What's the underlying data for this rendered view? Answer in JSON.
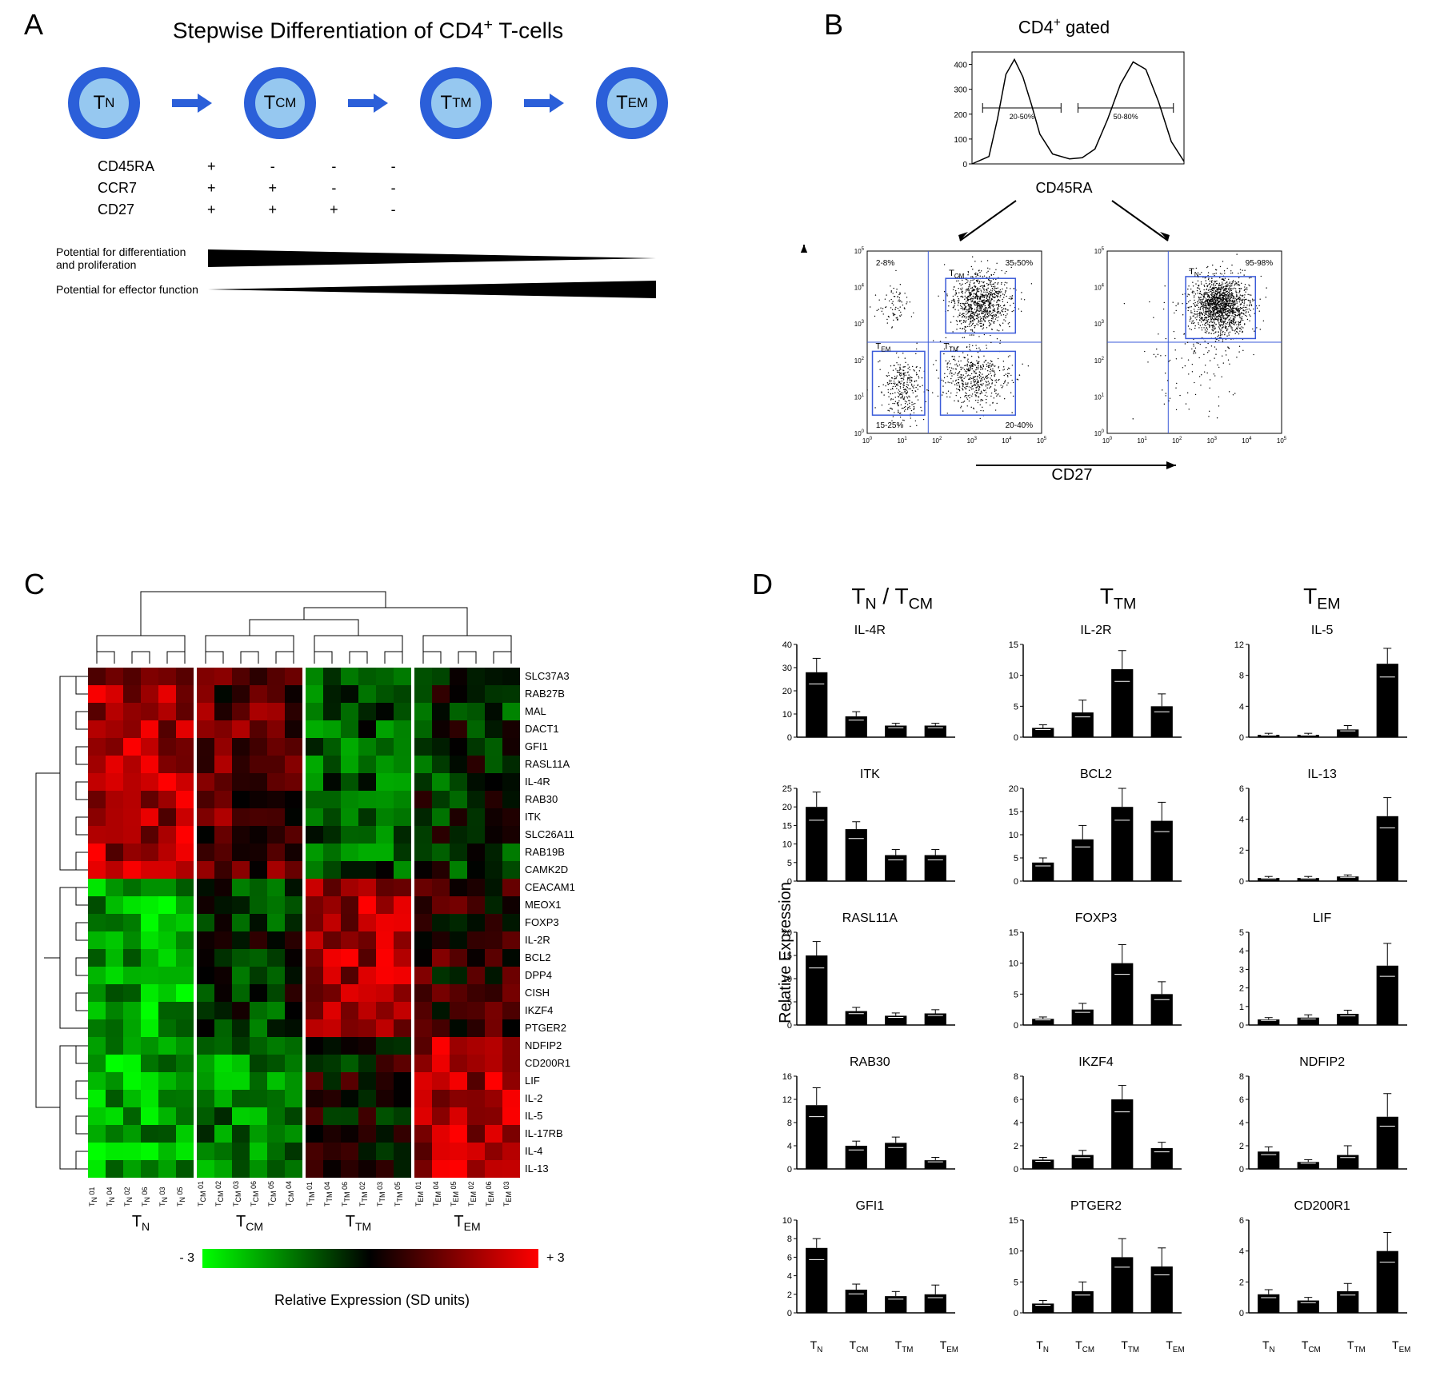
{
  "panel_labels": {
    "a": "A",
    "b": "B",
    "c": "C",
    "d": "D"
  },
  "panelA": {
    "title_prefix": "Stepwise Differentiation of CD4",
    "title_sup": "+",
    "title_suffix": " T-cells",
    "cells": [
      "T_N",
      "T_CM",
      "T_TM",
      "T_EM"
    ],
    "markers": [
      {
        "name": "CD45RA",
        "vals": [
          "+",
          "-",
          "-",
          "-"
        ]
      },
      {
        "name": "CCR7",
        "vals": [
          "+",
          "+",
          "-",
          "-"
        ]
      },
      {
        "name": "CD27",
        "vals": [
          "+",
          "+",
          "+",
          "-"
        ]
      }
    ],
    "wedge1": "Potential for differentiation\nand proliferation",
    "wedge2": "Potential for effector function",
    "colors": {
      "cell_fill": "#96c8f0",
      "cell_border": "#2b5fd9",
      "arrow": "#2b5fd9",
      "wedge": "#000000"
    }
  },
  "panelB": {
    "title_prefix": "CD4",
    "title_sup": "+",
    "title_suffix": " gated",
    "histogram": {
      "x_label": "CD45RA",
      "gates": [
        "20-50%",
        "50-80%"
      ],
      "y_ticks": [
        0,
        100,
        200,
        300,
        400
      ],
      "curve": [
        [
          0,
          0
        ],
        [
          8,
          30
        ],
        [
          12,
          180
        ],
        [
          16,
          360
        ],
        [
          20,
          420
        ],
        [
          24,
          350
        ],
        [
          28,
          240
        ],
        [
          32,
          120
        ],
        [
          38,
          40
        ],
        [
          46,
          20
        ],
        [
          52,
          25
        ],
        [
          58,
          60
        ],
        [
          64,
          180
        ],
        [
          70,
          320
        ],
        [
          76,
          410
        ],
        [
          82,
          380
        ],
        [
          88,
          250
        ],
        [
          94,
          90
        ],
        [
          100,
          10
        ]
      ]
    },
    "scatter_left": {
      "quads": {
        "tl": "2-8%",
        "tr": "35-50%",
        "bl": "15-25%",
        "br": "20-40%"
      },
      "boxes": {
        "TCM": "T_CM",
        "TTM": "T_TM",
        "TEM": "T_EM"
      }
    },
    "scatter_right": {
      "tr": "95-98%",
      "box": "T_N"
    },
    "y_axis": "CCR7",
    "x_axis": "CD27"
  },
  "panelC": {
    "genes": [
      "SLC37A3",
      "RAB27B",
      "MAL",
      "DACT1",
      "GFI1",
      "RASL11A",
      "IL-4R",
      "RAB30",
      "ITK",
      "SLC26A11",
      "RAB19B",
      "CAMK2D",
      "CEACAM1",
      "MEOX1",
      "FOXP3",
      "IL-2R",
      "BCL2",
      "DPP4",
      "CISH",
      "IKZF4",
      "PTGER2",
      "NDFIP2",
      "CD200R1",
      "LIF",
      "IL-2",
      "IL-5",
      "IL-17RB",
      "IL-4",
      "IL-13"
    ],
    "col_groups": [
      {
        "name": "T_N",
        "samples": [
          "T_N 01",
          "T_N 04",
          "T_N 02",
          "T_N 06",
          "T_N 03",
          "T_N 05"
        ]
      },
      {
        "name": "T_CM",
        "samples": [
          "T_CM 01",
          "T_CM 02",
          "T_CM 03",
          "T_CM 06",
          "T_CM 05",
          "T_CM 04"
        ]
      },
      {
        "name": "T_TM",
        "samples": [
          "T_TM 01",
          "T_TM 04",
          "T_TM 06",
          "T_TM 02",
          "T_TM 03",
          "T_TM 05"
        ]
      },
      {
        "name": "T_EM",
        "samples": [
          "T_EM 01",
          "T_EM 04",
          "T_EM 05",
          "T_EM 02",
          "T_EM 06",
          "T_EM 03"
        ]
      }
    ],
    "row_clusters": [
      12,
      9,
      8
    ],
    "colorbar": {
      "min": "- 3",
      "max": "+ 3",
      "title": "Relative Expression (SD units)"
    },
    "colors": {
      "low": "#00ff00",
      "mid": "#000000",
      "high": "#ff0000"
    }
  },
  "panelD": {
    "headers": [
      "T_N / T_CM",
      "T_TM",
      "T_EM"
    ],
    "ylabel": "Relative Expression",
    "x_cats": [
      "T_N",
      "T_CM",
      "T_TM",
      "T_EM"
    ],
    "charts": [
      {
        "title": "IL-4R",
        "ymax": 40,
        "ticks": [
          0,
          10,
          20,
          30,
          40
        ],
        "vals": [
          28,
          9,
          5,
          5
        ],
        "err": [
          6,
          2,
          1,
          1
        ]
      },
      {
        "title": "IL-2R",
        "ymax": 15,
        "ticks": [
          0,
          5,
          10,
          15
        ],
        "vals": [
          1.5,
          4,
          11,
          5
        ],
        "err": [
          0.5,
          2,
          3,
          2
        ]
      },
      {
        "title": "IL-5",
        "ymax": 12,
        "ticks": [
          0,
          4,
          8,
          12
        ],
        "vals": [
          0.3,
          0.3,
          1,
          9.5
        ],
        "err": [
          0.2,
          0.2,
          0.5,
          2
        ]
      },
      {
        "title": "ITK",
        "ymax": 25,
        "ticks": [
          0,
          5,
          10,
          15,
          20,
          25
        ],
        "vals": [
          20,
          14,
          7,
          7
        ],
        "err": [
          4,
          2,
          1.5,
          1.5
        ]
      },
      {
        "title": "BCL2",
        "ymax": 20,
        "ticks": [
          0,
          5,
          10,
          15,
          20
        ],
        "vals": [
          4,
          9,
          16,
          13
        ],
        "err": [
          1,
          3,
          4,
          4
        ]
      },
      {
        "title": "IL-13",
        "ymax": 6.0,
        "ticks": [
          0,
          2.0,
          4.0,
          6.0
        ],
        "vals": [
          0.2,
          0.2,
          0.3,
          4.2
        ],
        "err": [
          0.1,
          0.1,
          0.1,
          1.2
        ]
      },
      {
        "title": "RASL11A",
        "ymax": 20,
        "ticks": [
          0,
          5,
          10,
          15,
          20
        ],
        "vals": [
          15,
          3,
          2,
          2.5
        ],
        "err": [
          3,
          0.8,
          0.6,
          0.8
        ]
      },
      {
        "title": "FOXP3",
        "ymax": 15,
        "ticks": [
          0,
          5,
          10,
          15
        ],
        "vals": [
          1,
          2.5,
          10,
          5
        ],
        "err": [
          0.3,
          1,
          3,
          2
        ]
      },
      {
        "title": "LIF",
        "ymax": 5.0,
        "ticks": [
          0,
          1.0,
          2.0,
          3.0,
          4.0,
          5.0
        ],
        "vals": [
          0.3,
          0.4,
          0.6,
          3.2
        ],
        "err": [
          0.1,
          0.15,
          0.2,
          1.2
        ]
      },
      {
        "title": "RAB30",
        "ymax": 16,
        "ticks": [
          0,
          4,
          8,
          12,
          16
        ],
        "vals": [
          11,
          4,
          4.5,
          1.5
        ],
        "err": [
          3,
          0.8,
          1,
          0.5
        ]
      },
      {
        "title": "IKZF4",
        "ymax": 8.0,
        "ticks": [
          0,
          2.0,
          4.0,
          6.0,
          8.0
        ],
        "vals": [
          0.8,
          1.2,
          6,
          1.8
        ],
        "err": [
          0.2,
          0.4,
          1.2,
          0.5
        ]
      },
      {
        "title": "NDFIP2",
        "ymax": 8.0,
        "ticks": [
          0,
          2.0,
          4.0,
          6.0,
          8.0
        ],
        "vals": [
          1.5,
          0.6,
          1.2,
          4.5
        ],
        "err": [
          0.4,
          0.2,
          0.8,
          2
        ]
      },
      {
        "title": "GFI1",
        "ymax": 10,
        "ticks": [
          0,
          2,
          4,
          6,
          8,
          10
        ],
        "vals": [
          7,
          2.5,
          1.8,
          2
        ],
        "err": [
          1,
          0.6,
          0.5,
          1
        ]
      },
      {
        "title": "PTGER2",
        "ymax": 15,
        "ticks": [
          0,
          5,
          10,
          15
        ],
        "vals": [
          1.5,
          3.5,
          9,
          7.5
        ],
        "err": [
          0.5,
          1.5,
          3,
          3
        ]
      },
      {
        "title": "CD200R1",
        "ymax": 6.0,
        "ticks": [
          0,
          2.0,
          4.0,
          6.0
        ],
        "vals": [
          1.2,
          0.8,
          1.4,
          4
        ],
        "err": [
          0.3,
          0.2,
          0.5,
          1.2
        ]
      }
    ],
    "bar_color": "#000000"
  }
}
